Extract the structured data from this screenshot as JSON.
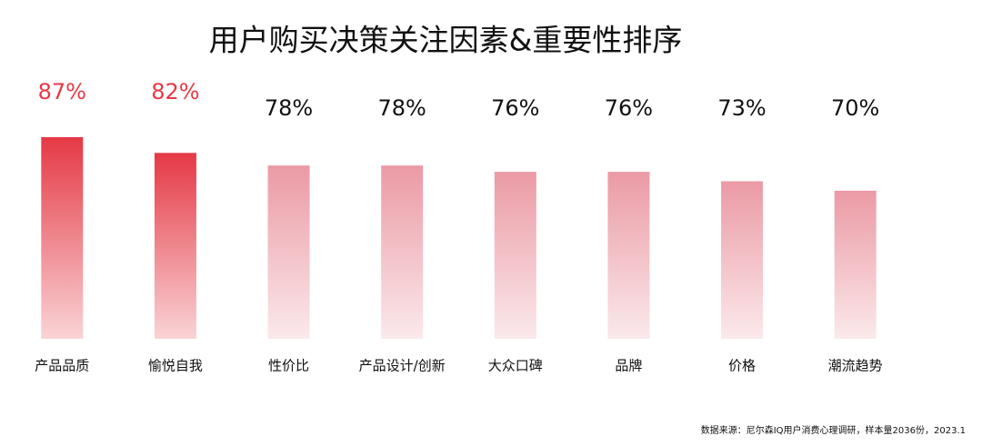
{
  "chart_data": {
    "type": "bar",
    "title": "用户购买决策关注因素&重要性排序",
    "categories": [
      "产品品质",
      "愉悦自我",
      "性价比",
      "产品设计/创新",
      "大众口碑",
      "品牌",
      "价格",
      "潮流趋势"
    ],
    "values": [
      87,
      82,
      78,
      78,
      76,
      76,
      73,
      70
    ],
    "value_labels": [
      "87%",
      "82%",
      "78%",
      "78%",
      "76%",
      "76%",
      "73%",
      "70%"
    ],
    "colors": [
      "#e53945",
      "#e53945",
      "#eb9aa4",
      "#eb9aa4",
      "#eb9aa4",
      "#eb9aa4",
      "#eb9aa4",
      "#eb9aa4"
    ],
    "ylim": [
      23,
      87
    ],
    "source": "数据来源：尼尔森IQ用户消费心理调研，样本量2036份，2023.1"
  }
}
